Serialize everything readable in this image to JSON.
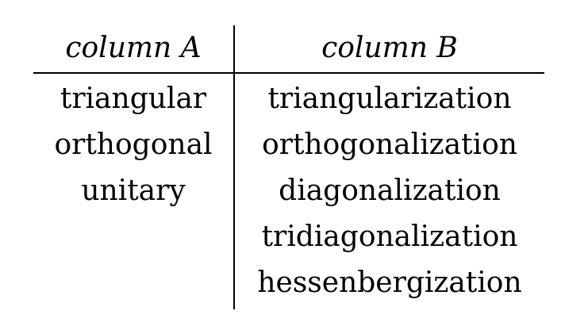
{
  "table": {
    "headers": [
      "column A",
      "column B"
    ],
    "column_a": [
      "triangular",
      "orthogonal",
      "unitary"
    ],
    "column_b": [
      "triangularization",
      "orthogonalization",
      "diagonalization",
      "tridiagonalization",
      "hessenbergization"
    ]
  }
}
